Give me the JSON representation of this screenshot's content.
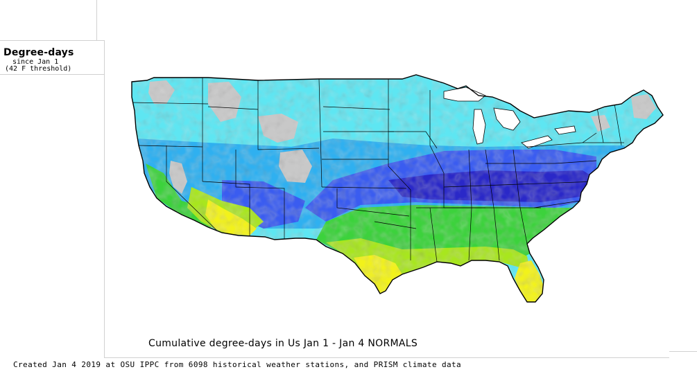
{
  "legend": {
    "title": "Degree-days",
    "subtitle_1": "since Jan 1",
    "subtitle_2": "(42 F threshold)"
  },
  "map": {
    "caption": "Cumulative degree-days in Us  Jan 1 - Jan 4 NORMALS",
    "region": "Contiguous United States",
    "colors": {
      "no_data_gray": "#c8c8c8",
      "cyan": "#5ee6f2",
      "light_blue": "#2fb0f0",
      "blue": "#3a5cf0",
      "dark_blue": "#2a28c8",
      "green": "#3cd23c",
      "lime": "#a8e61e",
      "yellow": "#f2f21a",
      "state_border": "#000000"
    }
  },
  "footer": {
    "credit": "Created Jan 4 2019 at OSU IPPC from 6098 historical weather stations, and PRISM climate data"
  }
}
